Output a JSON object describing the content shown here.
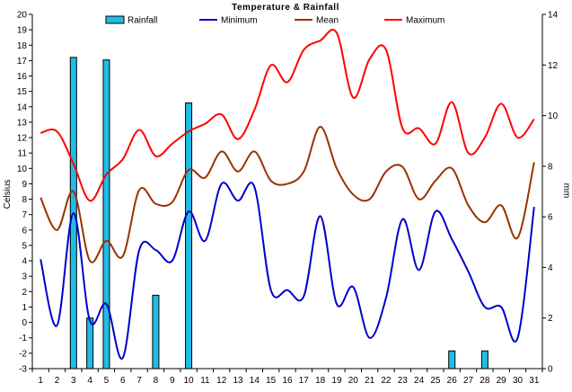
{
  "chart_data": {
    "type": "line",
    "title": "Temperature & Rainfall",
    "ylabel": "Celsius",
    "y2label": "mm",
    "x": [
      1,
      2,
      3,
      4,
      5,
      6,
      7,
      8,
      9,
      10,
      11,
      12,
      13,
      14,
      15,
      16,
      17,
      18,
      19,
      20,
      21,
      22,
      23,
      24,
      25,
      26,
      27,
      28,
      29,
      30,
      31
    ],
    "ylim": [
      -3,
      20
    ],
    "y2lim": [
      0,
      14
    ],
    "grid": false,
    "legend_position": "top",
    "series": [
      {
        "name": "Rainfall",
        "type": "bar",
        "axis": "right",
        "color": "#1fbde6",
        "values": [
          0,
          0,
          12.3,
          2,
          12.2,
          0,
          0,
          2.9,
          0,
          10.5,
          0,
          0,
          0,
          0,
          0,
          0,
          0,
          0,
          0,
          0,
          0,
          0,
          0,
          0,
          0,
          0.7,
          0,
          0.7,
          0,
          0,
          0
        ]
      },
      {
        "name": "Minimum",
        "type": "line",
        "axis": "left",
        "color": "#0000cc",
        "values": [
          4.1,
          -0.2,
          7.1,
          0.1,
          1.2,
          -2.3,
          4.7,
          4.7,
          4.0,
          7.2,
          5.3,
          9.0,
          7.9,
          8.8,
          2.1,
          2.1,
          1.7,
          6.9,
          1.2,
          2.3,
          -1.0,
          1.6,
          6.7,
          3.4,
          7.2,
          5.4,
          3.3,
          1.0,
          1.0,
          -1.0,
          7.5
        ]
      },
      {
        "name": "Mean",
        "type": "line",
        "axis": "left",
        "color": "#993300",
        "values": [
          8.1,
          6.0,
          8.5,
          4.0,
          5.3,
          4.3,
          8.6,
          7.7,
          7.8,
          9.9,
          9.4,
          11.1,
          9.8,
          11.1,
          9.2,
          9.0,
          9.8,
          12.7,
          10.0,
          8.3,
          8.0,
          9.8,
          10.1,
          8.0,
          9.2,
          10.0,
          7.6,
          6.5,
          7.6,
          5.5,
          10.4
        ]
      },
      {
        "name": "Maximum",
        "type": "line",
        "axis": "left",
        "color": "#ff0000",
        "values": [
          12.3,
          12.4,
          10.3,
          7.9,
          9.6,
          10.6,
          12.5,
          10.8,
          11.6,
          12.4,
          12.9,
          13.5,
          11.9,
          13.8,
          16.7,
          15.6,
          17.7,
          18.3,
          18.8,
          14.6,
          17.1,
          17.7,
          12.6,
          12.6,
          11.6,
          14.3,
          11.0,
          12.0,
          14.2,
          12.0,
          13.2
        ]
      }
    ]
  }
}
